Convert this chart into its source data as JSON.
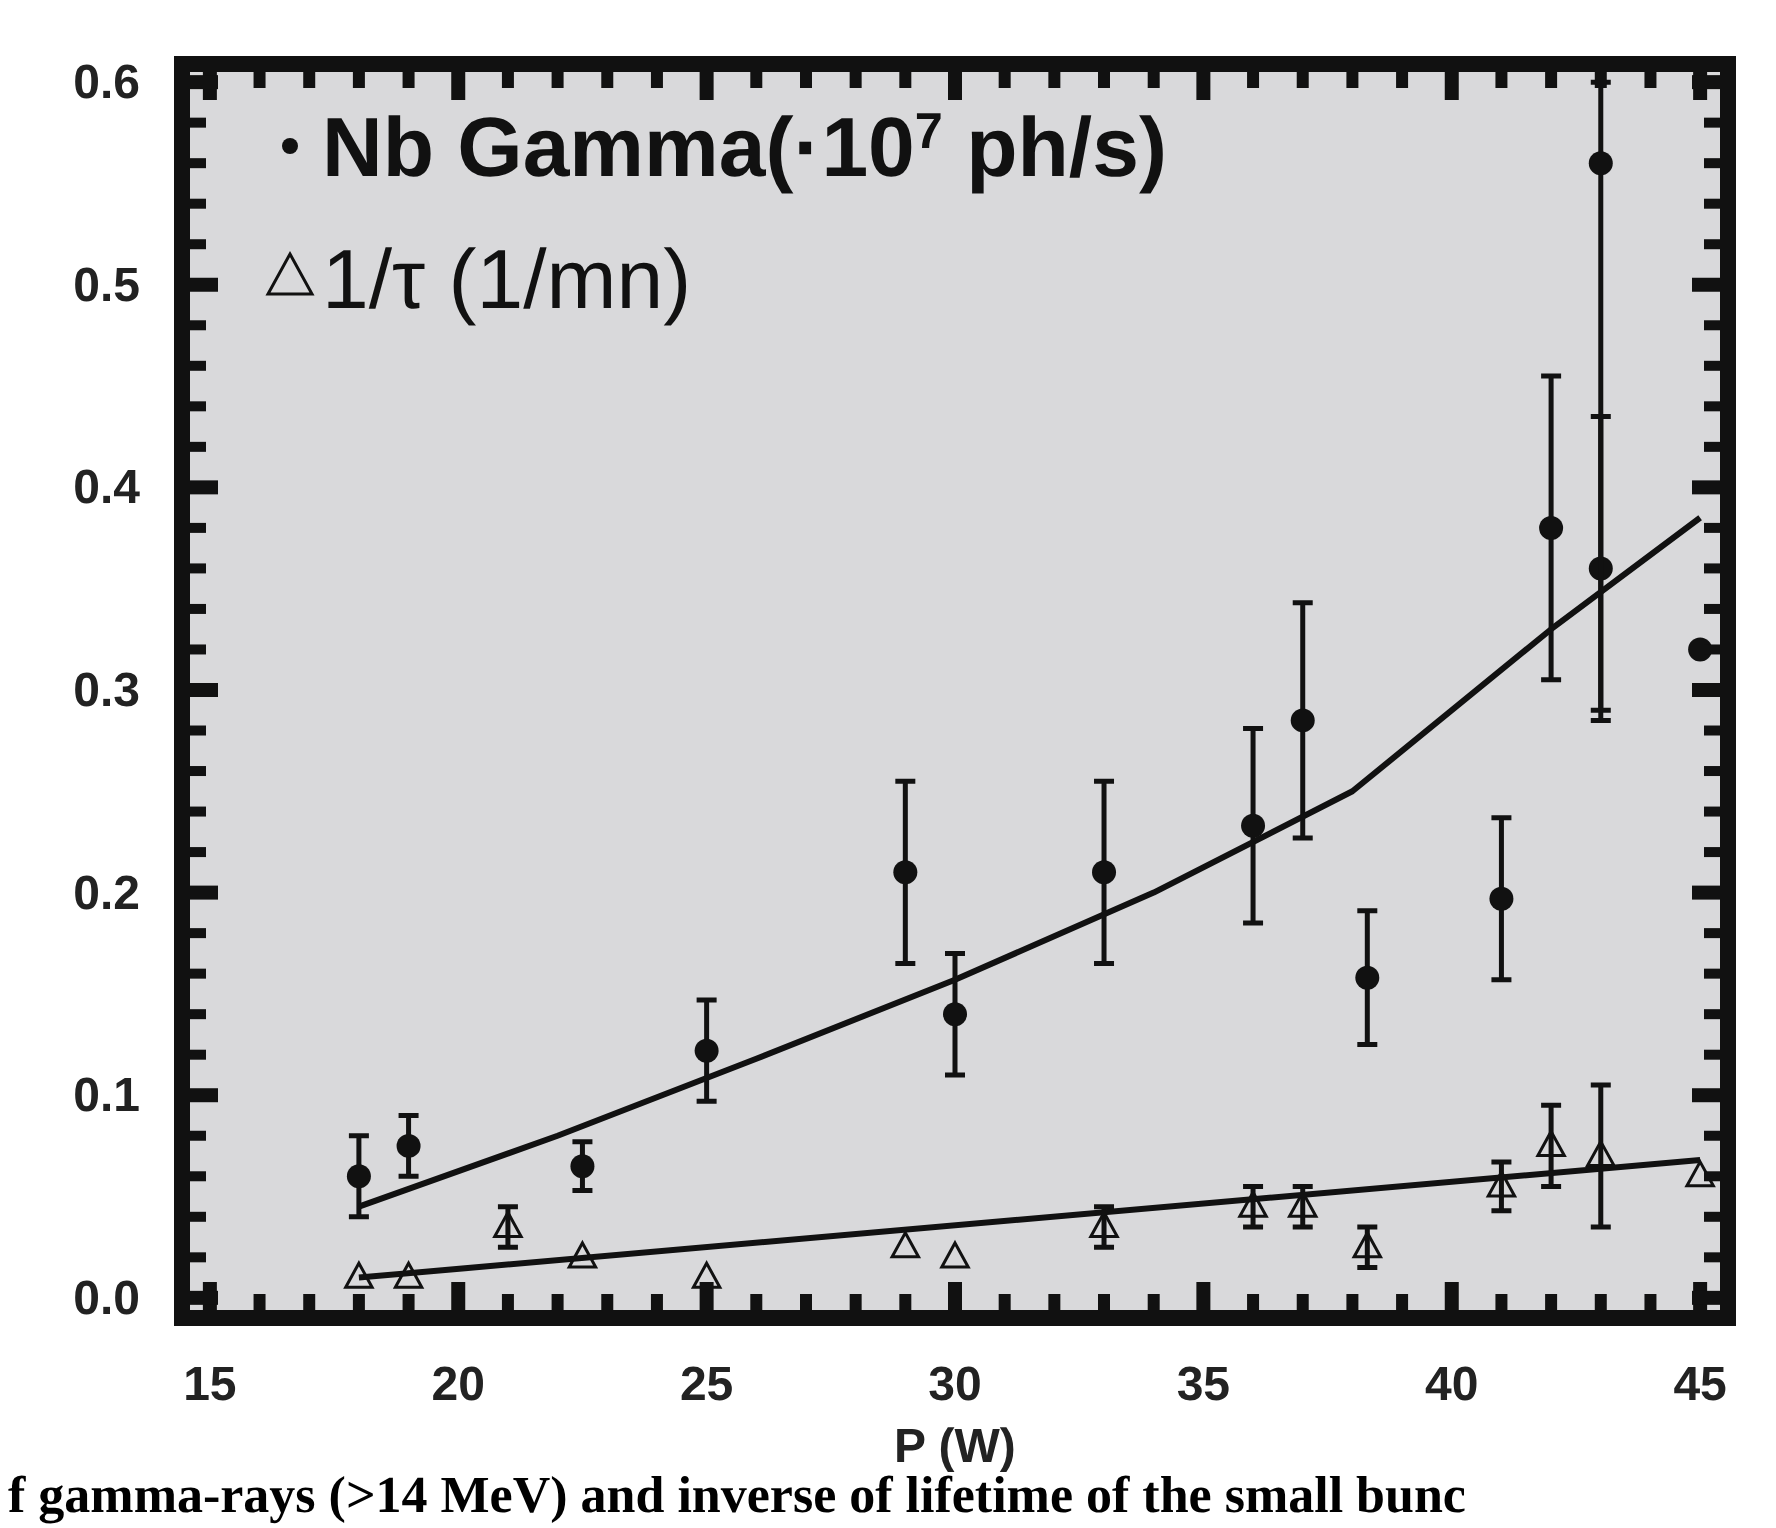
{
  "chart_data": {
    "type": "scatter",
    "xlabel": "P (W)",
    "legend": "top left",
    "grid": false,
    "xlim": [
      14.6,
      45.4
    ],
    "ylim": [
      -0.006,
      0.605
    ],
    "xticks": [
      15,
      20,
      25,
      30,
      35,
      40,
      45
    ],
    "yticks": [
      {
        "value": 0,
        "label": "0.0"
      },
      0.1,
      0.2,
      0.3,
      0.4,
      0.5,
      0.6
    ],
    "series": [
      {
        "name": "Nb Gamma(·10$^{7}$ ph/s)",
        "color": "#111111",
        "marker": "circle",
        "x": [
          18,
          19,
          22.5,
          25,
          29,
          30,
          33,
          36,
          37,
          38.3,
          41,
          42,
          43,
          43,
          45
        ],
        "values": [
          0.06,
          0.075,
          0.065,
          0.122,
          0.21,
          0.14,
          0.21,
          0.233,
          0.285,
          0.158,
          0.197,
          0.38,
          0.36,
          0.56,
          0.32
        ],
        "errors": [
          0.02,
          0.015,
          0.012,
          0.025,
          0.045,
          0.03,
          0.045,
          0.048,
          0.058,
          0.033,
          0.04,
          0.075,
          0.075,
          [
            0.29,
            0.6
          ],
          null
        ]
      },
      {
        "name": "1/τ (1/mn)",
        "color": "#111111",
        "marker": "triangle",
        "x": [
          18,
          19,
          21,
          22.5,
          25,
          29,
          30,
          33,
          36,
          37,
          38.3,
          41,
          42,
          43,
          45
        ],
        "values": [
          0.01,
          0.01,
          0.035,
          0.02,
          0.01,
          0.025,
          0.02,
          0.035,
          0.045,
          0.045,
          0.025,
          0.055,
          0.075,
          0.07,
          0.06
        ],
        "errors": [
          null,
          null,
          0.01,
          null,
          null,
          null,
          null,
          0.01,
          0.01,
          0.01,
          0.01,
          0.012,
          0.02,
          0.035,
          null
        ]
      },
      {
        "type": "line",
        "color": "#111111",
        "marker": "none",
        "x": [
          18,
          22,
          26,
          30,
          34,
          38,
          42,
          45
        ],
        "values": [
          0.045,
          0.08,
          0.118,
          0.157,
          0.2,
          0.25,
          0.33,
          0.385
        ]
      },
      {
        "type": "line",
        "color": "#111111",
        "marker": "none",
        "x": [
          18,
          45
        ],
        "values": [
          0.01,
          0.068
        ]
      }
    ],
    "annotations": [
      "f gamma-rays (>14 MeV) and inverse of lifetime of the small bunc"
    ]
  }
}
